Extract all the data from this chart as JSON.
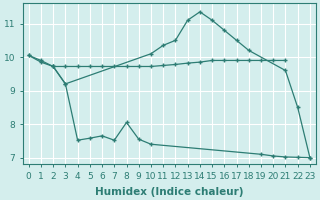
{
  "line1_x": [
    0,
    1,
    2,
    3,
    10,
    11,
    12,
    13,
    14,
    15,
    16,
    17,
    18,
    21,
    22,
    23
  ],
  "line1_y": [
    10.05,
    9.9,
    9.72,
    9.2,
    10.1,
    10.35,
    10.5,
    11.1,
    11.35,
    11.1,
    10.8,
    10.5,
    10.2,
    9.6,
    8.5,
    7.0
  ],
  "line2_x": [
    0,
    1,
    2,
    3,
    4,
    5,
    6,
    7,
    8,
    9,
    10,
    11,
    12,
    13,
    14,
    15,
    16,
    17,
    18,
    19,
    20,
    21
  ],
  "line2_y": [
    10.05,
    9.85,
    9.72,
    9.72,
    9.72,
    9.72,
    9.72,
    9.72,
    9.72,
    9.72,
    9.72,
    9.75,
    9.78,
    9.82,
    9.85,
    9.9,
    9.9,
    9.9,
    9.9,
    9.9,
    9.9,
    9.9
  ],
  "line3_x": [
    2,
    3,
    4,
    5,
    6,
    7,
    8,
    9,
    10,
    19,
    20,
    21,
    22,
    23
  ],
  "line3_y": [
    9.72,
    9.2,
    7.52,
    7.58,
    7.65,
    7.52,
    8.05,
    7.55,
    7.4,
    7.1,
    7.05,
    7.02,
    7.01,
    7.0
  ],
  "line_color": "#2d7d74",
  "bg_color": "#d4eeed",
  "grid_color": "#ffffff",
  "xlabel": "Humidex (Indice chaleur)",
  "xlim": [
    -0.5,
    23.5
  ],
  "ylim": [
    6.8,
    11.6
  ],
  "yticks": [
    7,
    8,
    9,
    10,
    11
  ],
  "xticks": [
    0,
    1,
    2,
    3,
    4,
    5,
    6,
    7,
    8,
    9,
    10,
    11,
    12,
    13,
    14,
    15,
    16,
    17,
    18,
    19,
    20,
    21,
    22,
    23
  ],
  "tick_label_fontsize": 6.5,
  "xlabel_fontsize": 7.5
}
